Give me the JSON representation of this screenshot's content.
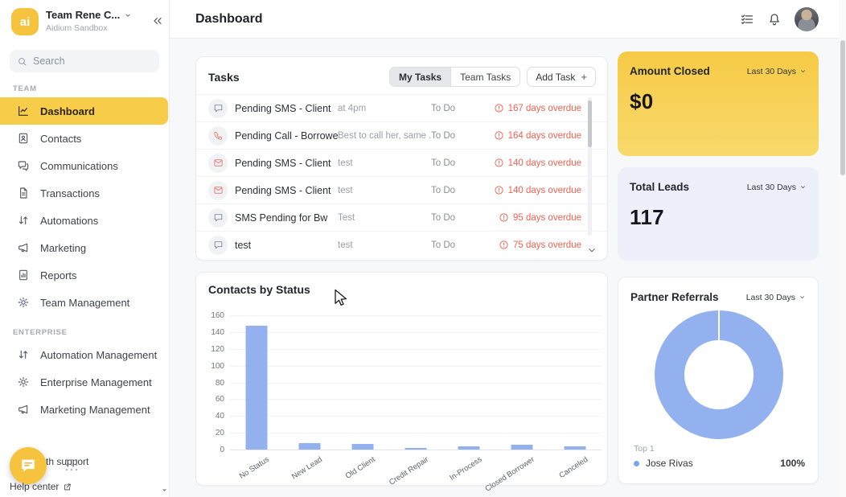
{
  "accent_colors": {
    "yellow": "#f6c33f",
    "blue": "#92b1ee",
    "red": "#ee6352",
    "lavender": "#edeffa"
  },
  "sidebar": {
    "logo_text": "ai",
    "team_name": "Team Rene C...",
    "workspace": "Aidium Sandbox",
    "search": {
      "placeholder": "Search"
    },
    "sections": [
      {
        "label": "TEAM",
        "items": [
          {
            "label": "Dashboard",
            "icon": "dashboard",
            "active": true
          },
          {
            "label": "Contacts",
            "icon": "contacts",
            "active": false
          },
          {
            "label": "Communications",
            "icon": "communications",
            "active": false
          },
          {
            "label": "Transactions",
            "icon": "transactions",
            "active": false
          },
          {
            "label": "Automations",
            "icon": "automations",
            "active": false
          },
          {
            "label": "Marketing",
            "icon": "marketing",
            "active": false
          },
          {
            "label": "Reports",
            "icon": "reports",
            "active": false
          },
          {
            "label": "Team Management",
            "icon": "gear",
            "active": false
          }
        ]
      },
      {
        "label": "ENTERPRISE",
        "items": [
          {
            "label": "Automation Management",
            "icon": "automations",
            "active": false
          },
          {
            "label": "Enterprise Management",
            "icon": "gear",
            "active": false
          },
          {
            "label": "Marketing Management",
            "icon": "marketing",
            "active": false
          }
        ]
      }
    ],
    "footer": {
      "support_text": "th support",
      "help_center": "Help center"
    }
  },
  "header": {
    "title": "Dashboard"
  },
  "tasks": {
    "title": "Tasks",
    "my_tasks_label": "My Tasks",
    "team_tasks_label": "Team Tasks",
    "add_task_label": "Add Task",
    "rows": [
      {
        "icon": "sms",
        "title": "Pending SMS - Client",
        "note": "at 4pm",
        "status": "To Do",
        "overdue": "167 days overdue"
      },
      {
        "icon": "call",
        "title": "Pending Call - Borrower",
        "note": "Best to call her, same ...",
        "status": "To Do",
        "overdue": "164 days overdue"
      },
      {
        "icon": "email",
        "title": "Pending SMS - Client",
        "note": "test",
        "status": "To Do",
        "overdue": "140 days overdue"
      },
      {
        "icon": "email",
        "title": "Pending SMS - Client",
        "note": "test",
        "status": "To Do",
        "overdue": "140 days overdue"
      },
      {
        "icon": "sms",
        "title": "SMS Pending for Bw",
        "note": "Test",
        "status": "To Do",
        "overdue": "95 days overdue"
      },
      {
        "icon": "sms",
        "title": "test",
        "note": "test",
        "status": "To Do",
        "overdue": "75 days overdue"
      }
    ]
  },
  "chart_data": {
    "type": "bar",
    "title": "Contacts by Status",
    "categories": [
      "No Status",
      "New Lead",
      "Old Client",
      "Credit Repair",
      "In-Process",
      "Closed Borrower",
      "Canceled"
    ],
    "values": [
      148,
      8,
      7,
      2,
      4,
      6,
      4
    ],
    "xlabel": "",
    "ylabel": "",
    "ylim": [
      0,
      160
    ],
    "yticks": [
      0,
      20,
      40,
      60,
      80,
      100,
      120,
      140,
      160
    ],
    "grid": true,
    "legend": "off",
    "bar_color": "#92b1ee"
  },
  "stats": {
    "amount_closed": {
      "title": "Amount Closed",
      "period": "Last 30 Days",
      "value": "$0"
    },
    "total_leads": {
      "title": "Total Leads",
      "period": "Last 30 Days",
      "value": "117"
    },
    "partner_referrals": {
      "title": "Partner Referrals",
      "period": "Last 30 Days",
      "top_label": "Top 1",
      "legend": [
        {
          "name": "Jose Rivas",
          "value": "100%"
        }
      ],
      "donut_color": "#92b1ee"
    }
  }
}
